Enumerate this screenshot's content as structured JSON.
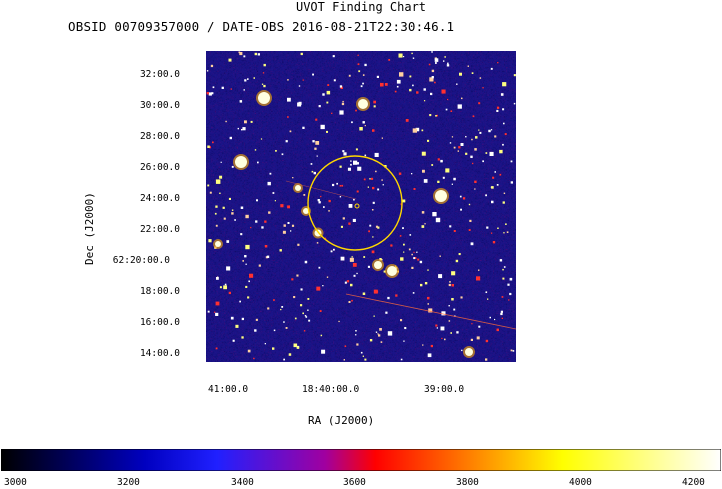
{
  "chart_data": {
    "type": "heatmap",
    "title": "UVOT Finding Chart",
    "subtitle": "OBSID 00709357000 / DATE-OBS 2016-08-21T22:30:46.1",
    "xlabel": "RA (J2000)",
    "ylabel": "Dec (J2000)",
    "x_ticks": [
      "41:00.0",
      "18:40:00.0",
      "39:00.0"
    ],
    "y_ticks": [
      "32:00.0",
      "30:00.0",
      "28:00.0",
      "26:00.0",
      "24:00.0",
      "22:00.0",
      "62:20:00.0",
      "18:00.0",
      "16:00.0",
      "14:00.0"
    ],
    "colorbar": {
      "ticks": [
        "3000",
        "3200",
        "3400",
        "3600",
        "3800",
        "4000",
        "4200"
      ],
      "range": [
        3000,
        4230
      ],
      "colormap": [
        "#000000",
        "#0000ff",
        "#ff0000",
        "#ffff00",
        "#ffffff"
      ]
    },
    "region_circle_color": "#ffd700",
    "grid": false
  }
}
